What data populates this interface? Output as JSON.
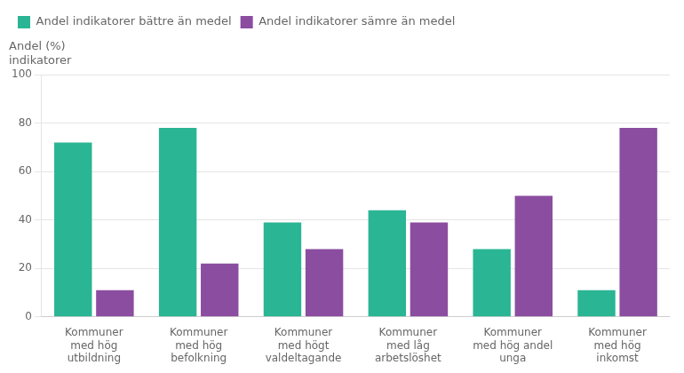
{
  "chart_data": {
    "type": "bar",
    "ylabel": "Andel (%)\nindikatorer",
    "categories": [
      "Kommuner\nmed hög\nutbildning",
      "Kommuner\nmed hög\nbefolkning",
      "Kommuner\nmed högt\nvaldeltagande",
      "Kommuner\nmed låg\narbetslöshet",
      "Kommuner\nmed hög andel\nunga",
      "Kommuner\nmed hög\ninkomst"
    ],
    "series": [
      {
        "name": "Andel indikatorer bättre än medel",
        "color": "#2ab594",
        "values": [
          72,
          78,
          39,
          44,
          28,
          11
        ]
      },
      {
        "name": "Andel indikatorer sämre än medel",
        "color": "#8b4da0",
        "values": [
          11,
          22,
          28,
          39,
          50,
          78
        ]
      }
    ],
    "ylim": [
      0,
      100
    ],
    "yticks": [
      0,
      20,
      40,
      60,
      80,
      100
    ],
    "grid": true,
    "legend": "top-left"
  }
}
